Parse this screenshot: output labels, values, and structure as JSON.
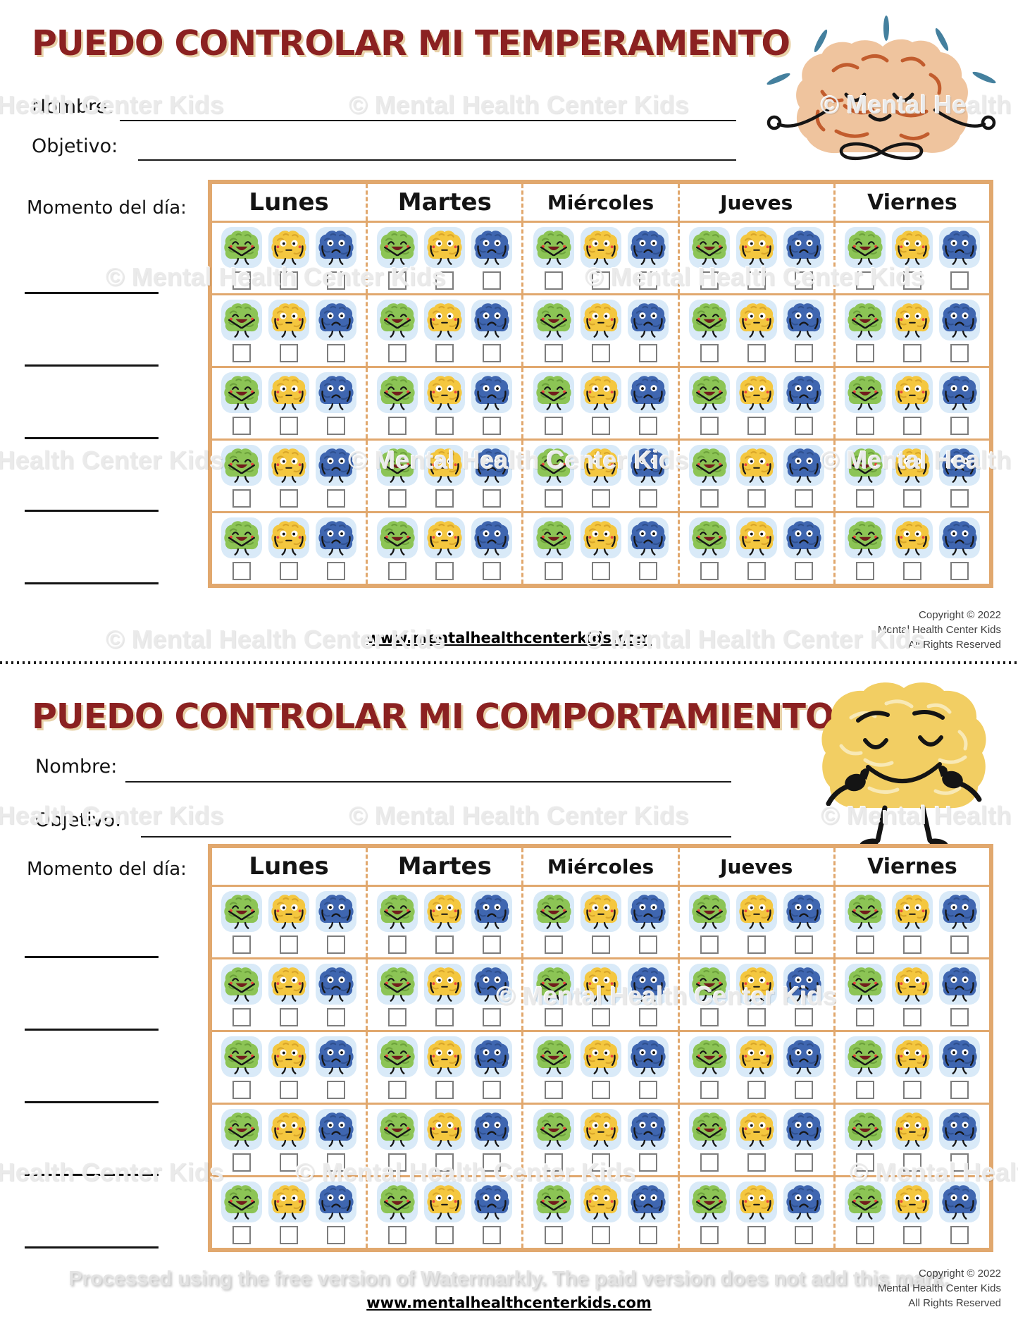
{
  "worksheets": [
    {
      "title": "PUEDO CONTROLAR MI TEMPERAMENTO",
      "name_label": "Nombre:",
      "goal_label": "Objetivo:",
      "moment_label": "Momento del día:",
      "days": [
        "Lunes",
        "Martes",
        "Miércoles",
        "Jueves",
        "Viernes"
      ],
      "time_slots": 5,
      "mascot": "meditating-brain",
      "footer": {
        "website": "www.mentalhealthcenterkids.com",
        "copyright": [
          "Copyright © 2022",
          "Mental Health Center Kids",
          "All Rights Reserved"
        ]
      }
    },
    {
      "title": "PUEDO CONTROLAR MI COMPORTAMIENTO",
      "name_label": "Nombre:",
      "goal_label": "Objetivo:",
      "moment_label": "Momento del día:",
      "days": [
        "Lunes",
        "Martes",
        "Miércoles",
        "Jueves",
        "Viernes"
      ],
      "time_slots": 5,
      "mascot": "thumbs-up-brain",
      "footer": {
        "website": "www.mentalhealthcenterkids.com",
        "copyright": [
          "Copyright © 2022",
          "Mental Health Center Kids",
          "All Rights Reserved"
        ]
      }
    }
  ],
  "emoji_options": [
    {
      "name": "happy-brain",
      "color": "#8cc455"
    },
    {
      "name": "neutral-brain",
      "color": "#f4c73f"
    },
    {
      "name": "sad-brain",
      "color": "#3f66b0"
    }
  ],
  "watermarks": {
    "site": "© Mental Health Center Kids",
    "processor": "Processed using the free version of Watermarkly. The paid version does not add this mark."
  },
  "colors": {
    "title": "#8b2121",
    "title_shadow": "#e8d2a9",
    "table_border": "#e1a86e",
    "emoji_tile_bg": "#d9eaf8",
    "teal_dash": "#44809e",
    "mascot_peach": "#efc49e",
    "mascot_peach_squiggle": "#c25c2d",
    "mascot_yellow": "#f2ce63",
    "mascot_yellow_squiggle": "#f8e9b6"
  }
}
